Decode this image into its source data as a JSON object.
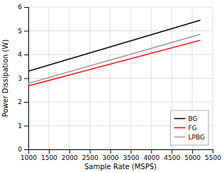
{
  "chart_data": {
    "type": "line",
    "xlabel": "Sample Rate (MSPS)",
    "ylabel": "Power Dissipation (W)",
    "x": [
      1000,
      5200
    ],
    "series": [
      {
        "name": "BG",
        "color": "#000000",
        "values": [
          3.3,
          5.45
        ]
      },
      {
        "name": "FG",
        "color": "#ff0000",
        "values": [
          2.68,
          4.6
        ]
      },
      {
        "name": "LPBG",
        "color": "#999999",
        "values": [
          2.78,
          4.85
        ]
      }
    ],
    "xlim": [
      1000,
      5500
    ],
    "ylim": [
      0,
      6
    ],
    "xticks": [
      1000,
      1500,
      2000,
      2500,
      3000,
      3500,
      4000,
      4500,
      5000,
      5500
    ],
    "yticks": [
      0,
      1,
      2,
      3,
      4,
      5,
      6
    ],
    "grid": true,
    "legend": "lower right"
  }
}
